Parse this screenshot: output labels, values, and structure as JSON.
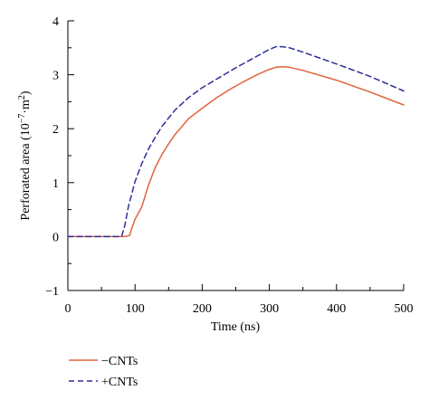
{
  "chart_data": {
    "type": "line",
    "title": "",
    "xlabel": "Time (ns)",
    "ylabel_main": "Perforated area (10",
    "ylabel_exp1": "−7",
    "ylabel_mid": "·m",
    "ylabel_exp2": "2",
    "ylabel_end": ")",
    "xlim": [
      0,
      500
    ],
    "ylim": [
      -1,
      4
    ],
    "xticks": [
      0,
      100,
      200,
      300,
      400,
      500
    ],
    "xtick_labels": [
      "0",
      "100",
      "200",
      "300",
      "400",
      "500"
    ],
    "yticks": [
      -1,
      0,
      1,
      2,
      3,
      4
    ],
    "ytick_labels": [
      "−1",
      "0",
      "1",
      "2",
      "3",
      "4"
    ],
    "grid": false,
    "legend_position": "bottom-left",
    "series": [
      {
        "name": "−CNTs",
        "color": "#e0643c",
        "dash": "solid",
        "x": [
          0,
          85,
          92,
          95,
          100,
          110,
          120,
          130,
          140,
          150,
          160,
          170,
          180,
          200,
          220,
          240,
          260,
          280,
          300,
          310,
          320,
          330,
          350,
          400,
          450,
          500
        ],
        "y": [
          0,
          0,
          0.02,
          0.15,
          0.32,
          0.55,
          0.95,
          1.28,
          1.52,
          1.72,
          1.9,
          2.04,
          2.19,
          2.38,
          2.56,
          2.72,
          2.86,
          2.99,
          3.1,
          3.14,
          3.15,
          3.14,
          3.08,
          2.9,
          2.68,
          2.44
        ]
      },
      {
        "name": "+CNTs",
        "color": "#2e2e9c",
        "dash": "dashed",
        "x": [
          0,
          80,
          85,
          90,
          100,
          110,
          120,
          130,
          140,
          150,
          160,
          180,
          200,
          250,
          300,
          310,
          320,
          330,
          350,
          400,
          450,
          500
        ],
        "y": [
          0,
          0,
          0.22,
          0.55,
          1.02,
          1.35,
          1.62,
          1.84,
          2.04,
          2.2,
          2.35,
          2.58,
          2.76,
          3.13,
          3.47,
          3.52,
          3.52,
          3.5,
          3.42,
          3.2,
          2.97,
          2.7
        ]
      }
    ]
  }
}
